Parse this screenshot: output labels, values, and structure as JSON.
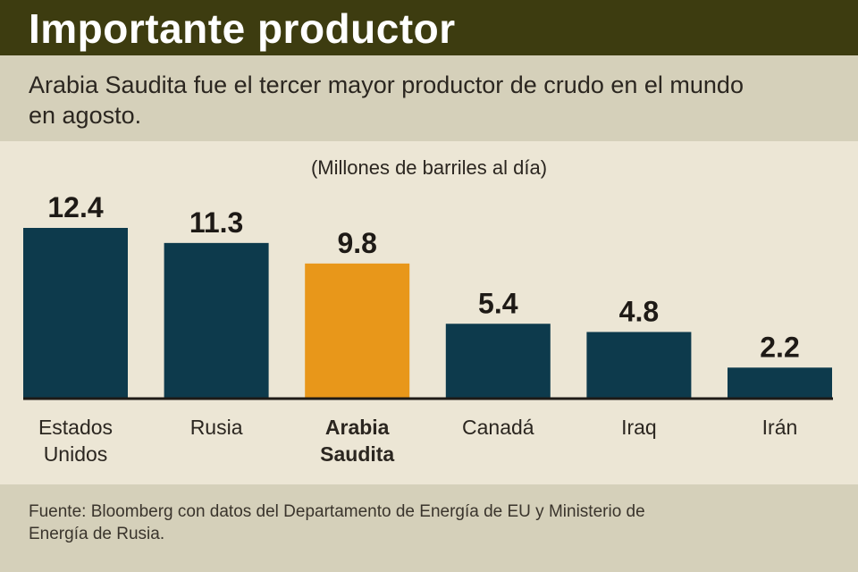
{
  "header": {
    "title": "Importante productor",
    "subtitle": "Arabia Saudita fue el tercer mayor productor de crudo en el mundo en agosto."
  },
  "footer": {
    "source": "Fuente: Bloomberg con datos del Departamento de Energía de EU y Ministerio de Energía de Rusia."
  },
  "colors": {
    "bar": "#0d3a4c",
    "highlight": "#e8971a",
    "header_bg": "#3d3c10",
    "text": "#2b2620"
  },
  "chart_data": {
    "type": "bar",
    "units_label": "(Millones de barriles al día)",
    "categories": [
      [
        "Estados",
        "Unidos"
      ],
      [
        "Rusia"
      ],
      [
        "Arabia",
        "Saudita"
      ],
      [
        "Canadá"
      ],
      [
        "Iraq"
      ],
      [
        "Irán"
      ]
    ],
    "values": [
      12.4,
      11.3,
      9.8,
      5.4,
      4.8,
      2.2
    ],
    "value_labels": [
      "12.4",
      "11.3",
      "9.8",
      "5.4",
      "4.8",
      "2.2"
    ],
    "highlight_index": 2,
    "ylim": [
      0,
      12.4
    ],
    "grid": false,
    "legend": "none"
  }
}
